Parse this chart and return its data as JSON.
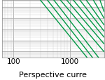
{
  "title": "",
  "xlabel": "Perspective curre",
  "ylabel": "",
  "xlim": [
    63,
    4000
  ],
  "ylim": [
    0.003,
    400.0
  ],
  "x_ticks": [
    100,
    1000
  ],
  "background_color": "#ffffff",
  "grid_major_color": "#999999",
  "grid_minor_color": "#cccccc",
  "line_color": "#009944",
  "line_width": 1.0,
  "curves": [
    {
      "x": [
        300,
        2000
      ],
      "y": [
        400.0,
        0.003
      ]
    },
    {
      "x": [
        400,
        2500
      ],
      "y": [
        400.0,
        0.003
      ]
    },
    {
      "x": [
        520,
        3200
      ],
      "y": [
        400.0,
        0.003
      ]
    },
    {
      "x": [
        680,
        4000
      ],
      "y": [
        400.0,
        0.01
      ]
    },
    {
      "x": [
        880,
        4000
      ],
      "y": [
        400.0,
        0.05
      ]
    },
    {
      "x": [
        1150,
        4000
      ],
      "y": [
        400.0,
        0.2
      ]
    },
    {
      "x": [
        1500,
        4000
      ],
      "y": [
        400.0,
        0.7
      ]
    },
    {
      "x": [
        1950,
        4000
      ],
      "y": [
        400.0,
        2.5
      ]
    },
    {
      "x": [
        2600,
        4000
      ],
      "y": [
        400.0,
        10.0
      ]
    },
    {
      "x": [
        3400,
        4000
      ],
      "y": [
        400.0,
        40.0
      ]
    }
  ],
  "xlabel_fontsize": 8,
  "tick_fontsize": 7.5
}
